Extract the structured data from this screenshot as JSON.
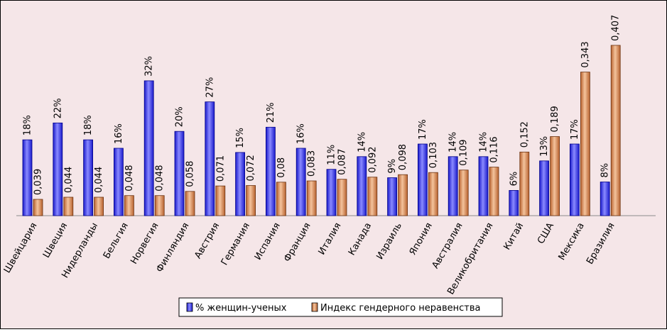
{
  "chart_data": {
    "type": "bar",
    "categories": [
      "Швейцария",
      "Швеция",
      "Нидерланды",
      "Бельгия",
      "Норвегия",
      "Финляндия",
      "Австрия",
      "Германия",
      "Испания",
      "Франция",
      "Италия",
      "Канада",
      "Израиль",
      "Япония",
      "Австралия",
      "Великобритания",
      "Китай",
      "США",
      "Мексика",
      "Бразилия"
    ],
    "series": [
      {
        "name": "% женщин-ученых",
        "values": [
          18,
          22,
          18,
          16,
          32,
          20,
          27,
          15,
          21,
          16,
          11,
          14,
          9,
          17,
          14,
          14,
          6,
          13,
          17,
          8
        ],
        "labels": [
          "18%",
          "22%",
          "18%",
          "16%",
          "32%",
          "20%",
          "27%",
          "15%",
          "21%",
          "16%",
          "11%",
          "14%",
          "9%",
          "17%",
          "14%",
          "14%",
          "6%",
          "13%",
          "17%",
          "8%"
        ],
        "color": "#3333ee"
      },
      {
        "name": "Индекс гендерного неравенства",
        "values": [
          0.039,
          0.044,
          0.044,
          0.048,
          0.048,
          0.058,
          0.071,
          0.072,
          0.08,
          0.083,
          0.087,
          0.092,
          0.098,
          0.103,
          0.109,
          0.116,
          0.152,
          0.189,
          0.343,
          0.407
        ],
        "labels": [
          "0,039",
          "0,044",
          "0,044",
          "0,048",
          "0,048",
          "0,058",
          "0,071",
          "0,072",
          "0,08",
          "0,083",
          "0,087",
          "0,092",
          "0,098",
          "0,103",
          "0,109",
          "0,116",
          "0,152",
          "0,189",
          "0,343",
          "0,407"
        ],
        "color": "#d9824a"
      }
    ],
    "legend_position": "bottom",
    "grid": false
  }
}
